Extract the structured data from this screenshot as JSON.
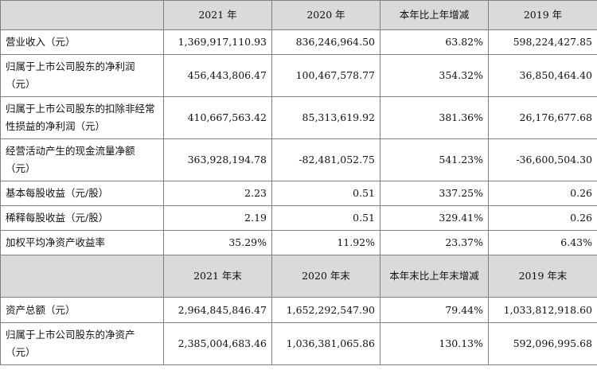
{
  "header1": {
    "c1": "2021 年",
    "c2": "2020 年",
    "c3": "本年比上年增减",
    "c4": "2019 年"
  },
  "rows1": [
    {
      "label": "营业收入（元）",
      "v1": "1,369,917,110.93",
      "v2": "836,246,964.50",
      "v3": "63.82%",
      "v4": "598,224,427.85"
    },
    {
      "label": "归属于上市公司股东的净利润（元）",
      "v1": "456,443,806.47",
      "v2": "100,467,578.77",
      "v3": "354.32%",
      "v4": "36,850,464.40"
    },
    {
      "label": "归属于上市公司股东的扣除非经常性损益的净利润（元）",
      "v1": "410,667,563.42",
      "v2": "85,313,619.92",
      "v3": "381.36%",
      "v4": "26,176,677.68"
    },
    {
      "label": "经营活动产生的现金流量净额（元）",
      "v1": "363,928,194.78",
      "v2": "-82,481,052.75",
      "v3": "541.23%",
      "v4": "-36,600,504.30"
    },
    {
      "label": "基本每股收益（元/股）",
      "v1": "2.23",
      "v2": "0.51",
      "v3": "337.25%",
      "v4": "0.26"
    },
    {
      "label": "稀释每股收益（元/股）",
      "v1": "2.19",
      "v2": "0.51",
      "v3": "329.41%",
      "v4": "0.26"
    },
    {
      "label": "加权平均净资产收益率",
      "v1": "35.29%",
      "v2": "11.92%",
      "v3": "23.37%",
      "v4": "6.43%"
    }
  ],
  "header2": {
    "c1": "2021 年末",
    "c2": "2020 年末",
    "c3": "本年末比上年末增减",
    "c4": "2019 年末"
  },
  "rows2": [
    {
      "label": "资产总额（元）",
      "v1": "2,964,845,846.47",
      "v2": "1,652,292,547.90",
      "v3": "79.44%",
      "v4": "1,033,812,918.60"
    },
    {
      "label": "归属于上市公司股东的净资产（元）",
      "v1": "2,385,004,683.46",
      "v2": "1,036,381,065.86",
      "v3": "130.13%",
      "v4": "592,096,995.68"
    }
  ]
}
